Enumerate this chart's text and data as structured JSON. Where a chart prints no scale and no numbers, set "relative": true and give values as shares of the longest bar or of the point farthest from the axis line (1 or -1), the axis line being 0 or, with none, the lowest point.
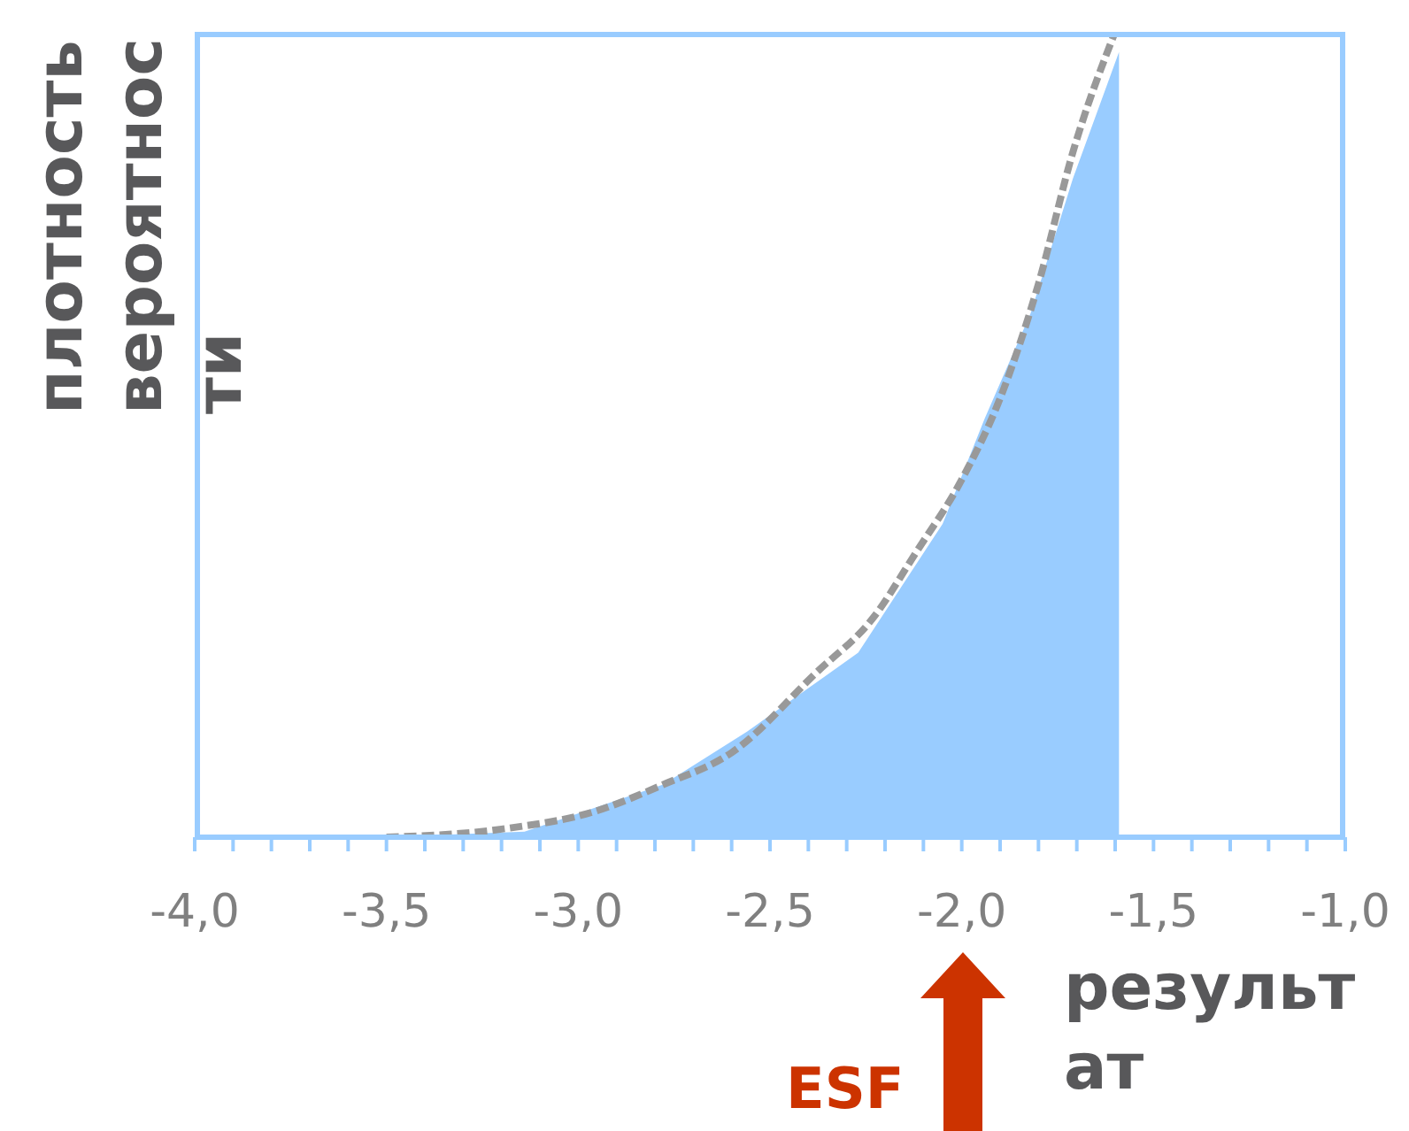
{
  "chart_data": {
    "type": "area",
    "relative": true,
    "ylabel": "плотность вероятности",
    "xlabel": "результат",
    "xlim": [
      -4,
      -1
    ],
    "xticks": [
      {
        "value": -4,
        "label": "-4,0"
      },
      {
        "value": -3.9,
        "label": null
      },
      {
        "value": -3.8,
        "label": null
      },
      {
        "value": -3.7,
        "label": null
      },
      {
        "value": -3.6,
        "label": null
      },
      {
        "value": -3.5,
        "label": "-3,5"
      },
      {
        "value": -3.4,
        "label": null
      },
      {
        "value": -3.3,
        "label": null
      },
      {
        "value": -3.2,
        "label": null
      },
      {
        "value": -3.1,
        "label": null
      },
      {
        "value": -3,
        "label": "-3,0"
      },
      {
        "value": -2.9,
        "label": null
      },
      {
        "value": -2.8,
        "label": null
      },
      {
        "value": -2.7,
        "label": null
      },
      {
        "value": -2.6,
        "label": null
      },
      {
        "value": -2.5,
        "label": "-2,5"
      },
      {
        "value": -2.4,
        "label": null
      },
      {
        "value": -2.3,
        "label": null
      },
      {
        "value": -2.2,
        "label": null
      },
      {
        "value": -2.1,
        "label": null
      },
      {
        "value": -2,
        "label": "-2,0"
      },
      {
        "value": -1.9,
        "label": null
      },
      {
        "value": -1.8,
        "label": null
      },
      {
        "value": -1.7,
        "label": null
      },
      {
        "value": -1.6,
        "label": null
      },
      {
        "value": -1.5,
        "label": "-1,5"
      },
      {
        "value": -1.4,
        "label": null
      },
      {
        "value": -1.3,
        "label": null
      },
      {
        "value": -1.2,
        "label": null
      },
      {
        "value": -1.1,
        "label": null
      },
      {
        "value": -1,
        "label": "-1,0"
      }
    ],
    "series": [
      {
        "color": "#99ccff",
        "x": [
          -3.5,
          -3.14,
          -2.78,
          -2.56,
          -2.27,
          -2.05,
          -1.94,
          -1.82,
          -1.71,
          -1.59,
          -1.59
        ],
        "values": [
          0,
          0.007,
          0.065,
          0.131,
          0.229,
          0.389,
          0.52,
          0.651,
          0.818,
          0.975,
          0
        ]
      },
      {
        "type": "line",
        "color": "#999999",
        "line_style": "dashed",
        "x": [
          -3.5,
          -3.2,
          -2.95,
          -2.78,
          -2.6,
          -2.38,
          -2.23,
          -2.12,
          -2.0,
          -1.9,
          -1.8,
          -1.71,
          -1.6
        ],
        "values": [
          0,
          0.01,
          0.033,
          0.065,
          0.105,
          0.204,
          0.273,
          0.353,
          0.444,
          0.545,
          0.687,
          0.851,
          1
        ]
      }
    ],
    "annotations": [
      "ESF"
    ]
  }
}
